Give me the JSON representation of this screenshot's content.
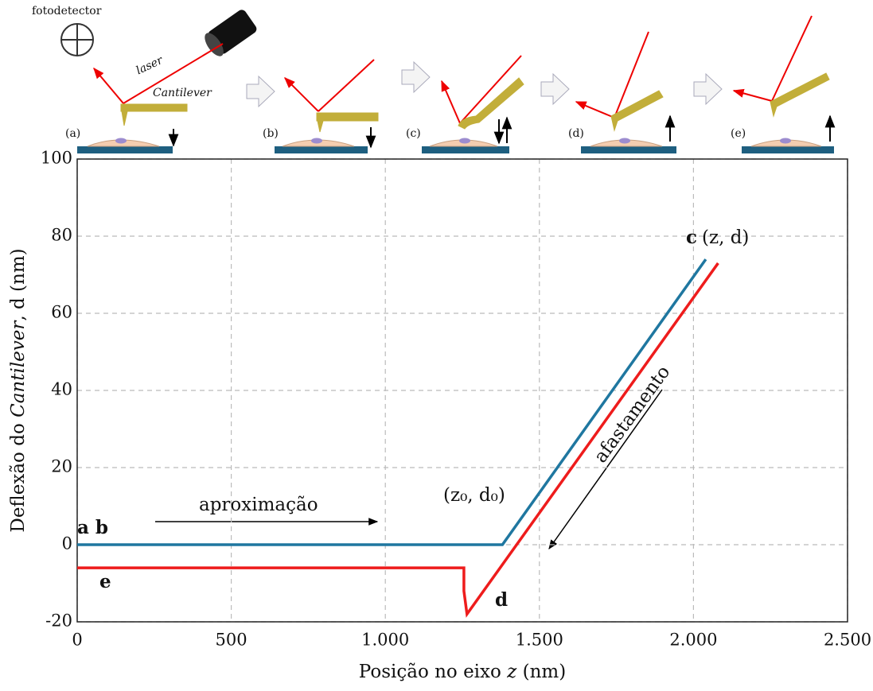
{
  "chart_data": {
    "type": "line",
    "x_label": [
      "Posição no eixo ",
      "z",
      " (nm)"
    ],
    "y_label": [
      "Deflexão do ",
      "Cantilever",
      ", d (nm)"
    ],
    "xlim": [
      0,
      2500
    ],
    "ylim": [
      -20,
      100
    ],
    "xticks": [
      0,
      500,
      {
        "value": 1000,
        "label": "1.000"
      },
      {
        "value": 1500,
        "label": "1.500"
      },
      {
        "value": 2000,
        "label": "2.000"
      },
      {
        "value": 2500,
        "label": "2.500"
      }
    ],
    "yticks": [
      -20,
      0,
      20,
      40,
      60,
      80,
      100
    ],
    "grid": true,
    "series": [
      {
        "color": "#1f77a0",
        "x": [
          0,
          1380,
          2040
        ],
        "values": [
          0,
          0,
          74
        ]
      },
      {
        "color": "#ee1c1c",
        "x": [
          0,
          1255,
          1255,
          1265,
          2080
        ],
        "values": [
          -6,
          -6,
          -12,
          -18,
          73
        ]
      }
    ],
    "annotations": [
      "a b",
      "e",
      "d",
      "c",
      "(z, d)",
      "(z₀, d₀)",
      "aproximação",
      "afastamento"
    ]
  },
  "illustration": {
    "labels": [
      "fotodetector",
      "laser",
      "Cantilever",
      "(a)",
      "(b)",
      "(c)",
      "(d)",
      "(e)"
    ]
  }
}
